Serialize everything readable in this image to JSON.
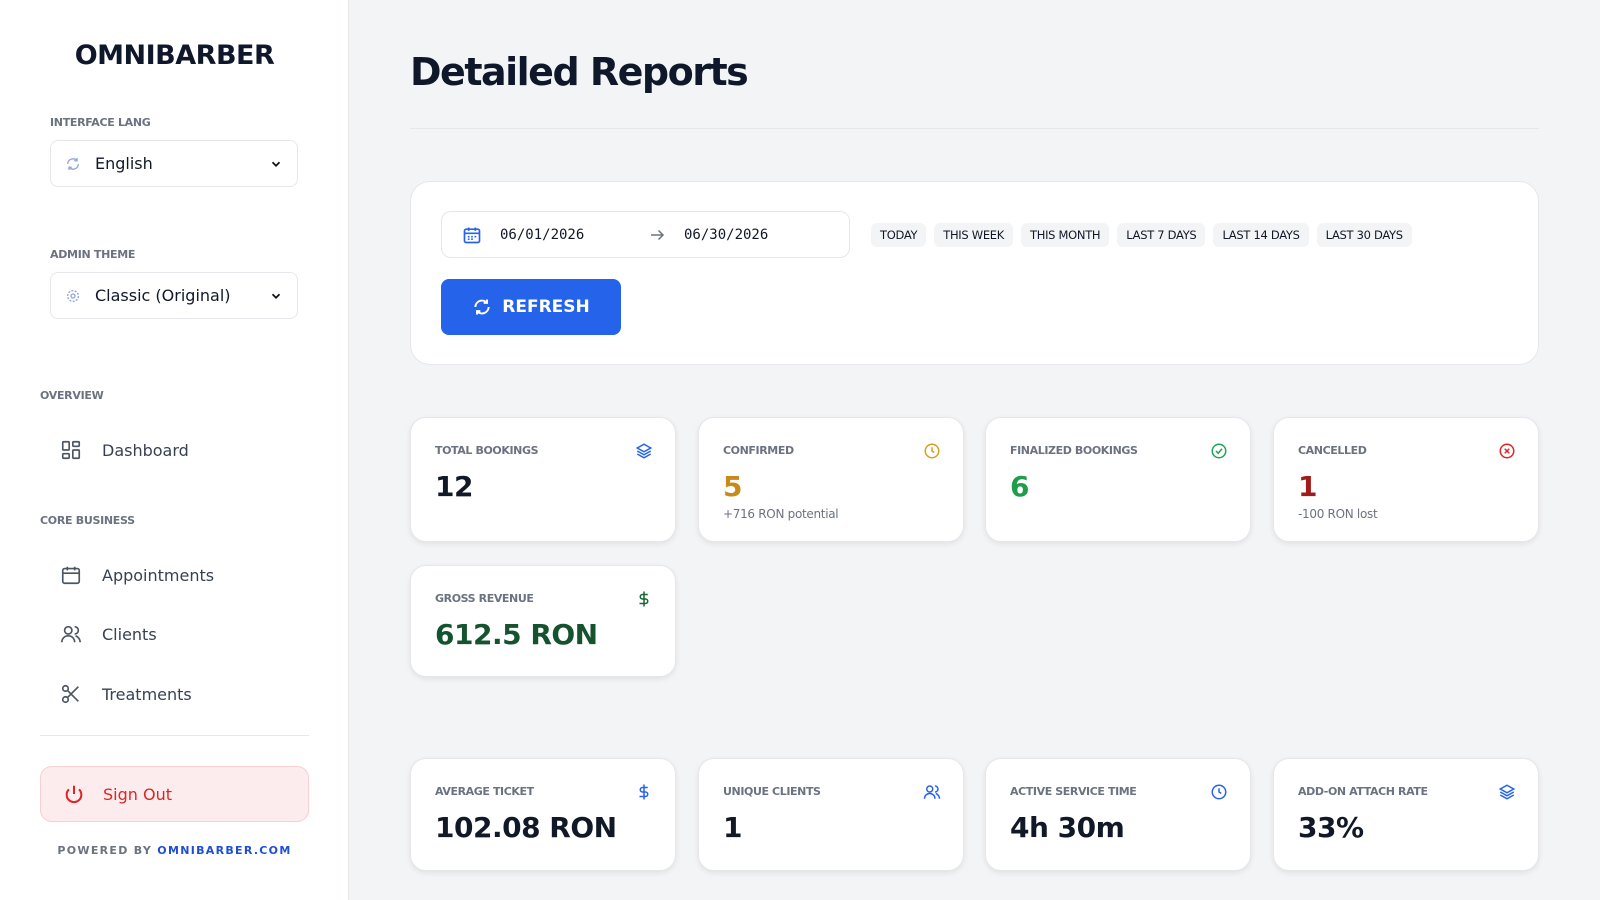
{
  "sidebar": {
    "brand": "OMNIBARBER",
    "language": {
      "label": "INTERFACE LANG",
      "value": "English"
    },
    "theme": {
      "label": "ADMIN THEME",
      "value": "Classic (Original)"
    },
    "sections": [
      {
        "title": "OVERVIEW",
        "items": [
          "Dashboard"
        ]
      },
      {
        "title": "CORE BUSINESS",
        "items": [
          "Appointments",
          "Clients",
          "Treatments"
        ]
      }
    ],
    "sign_out": "Sign Out",
    "footer": {
      "prefix": "POWERED BY",
      "link": "OMNIBARBER.COM"
    }
  },
  "main": {
    "title": "Detailed Reports",
    "filters": {
      "date_from": "06/01/2026",
      "date_to": "06/30/2026",
      "presets": [
        "TODAY",
        "THIS WEEK",
        "THIS MONTH",
        "LAST 7 DAYS",
        "LAST 14 DAYS",
        "LAST 30 DAYS"
      ],
      "refresh": "REFRESH"
    },
    "cards": [
      {
        "label": "TOTAL BOOKINGS",
        "value": "12"
      },
      {
        "label": "CONFIRMED",
        "value": "5",
        "note": "+716 RON potential"
      },
      {
        "label": "FINALIZED BOOKINGS",
        "value": "6"
      },
      {
        "label": "CANCELLED",
        "value": "1",
        "note": "-100 RON lost"
      },
      {
        "label": "GROSS REVENUE",
        "value": "612.5 RON"
      },
      {
        "label": "AVERAGE TICKET",
        "value": "102.08 RON"
      },
      {
        "label": "UNIQUE CLIENTS",
        "value": "1"
      },
      {
        "label": "ACTIVE SERVICE TIME",
        "value": "4h 30m"
      },
      {
        "label": "ADD-ON ATTACH RATE",
        "value": "33%"
      }
    ]
  }
}
